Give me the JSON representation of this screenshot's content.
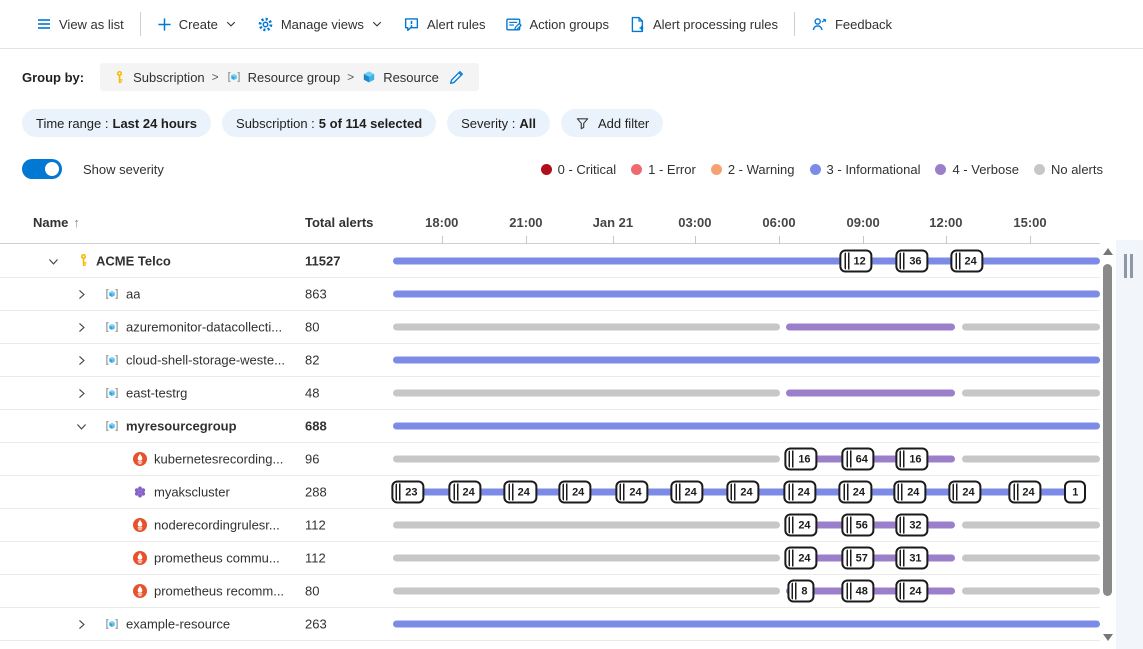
{
  "toolbar": {
    "items": [
      {
        "label": "View as list",
        "icon": "list",
        "chevron": false
      },
      {
        "label": "Create",
        "icon": "plus",
        "chevron": true
      },
      {
        "label": "Manage views",
        "icon": "gear",
        "chevron": true
      },
      {
        "label": "Alert rules",
        "icon": "alert-rules",
        "chevron": false
      },
      {
        "label": "Action groups",
        "icon": "action-groups",
        "chevron": false
      },
      {
        "label": "Alert processing rules",
        "icon": "processing-rules",
        "chevron": false
      },
      {
        "label": "Feedback",
        "icon": "feedback",
        "chevron": false
      }
    ]
  },
  "group_by": {
    "label": "Group by:",
    "path": [
      {
        "icon": "key",
        "label": "Subscription"
      },
      {
        "icon": "resource-group",
        "label": "Resource group"
      },
      {
        "icon": "resource",
        "label": "Resource"
      }
    ]
  },
  "filters": [
    {
      "name": "Time range",
      "value": "Last 24 hours"
    },
    {
      "name": "Subscription",
      "value": "5 of 114 selected"
    },
    {
      "name": "Severity",
      "value": "All"
    }
  ],
  "add_filter_label": "Add filter",
  "severity_toggle": {
    "label": "Show severity",
    "on": true
  },
  "legend": [
    {
      "label": "0 - Critical",
      "color": "#b10e1c"
    },
    {
      "label": "1 - Error",
      "color": "#ee6a6e"
    },
    {
      "label": "2 - Warning",
      "color": "#f7a173"
    },
    {
      "label": "3 - Informational",
      "color": "#7c8be6"
    },
    {
      "label": "4 - Verbose",
      "color": "#9c7fcb"
    },
    {
      "label": "No alerts",
      "color": "#c7c7c7"
    }
  ],
  "table": {
    "name_header": "Name",
    "sort_arrow": "↑",
    "total_header": "Total alerts",
    "ticks": [
      {
        "label": "18:00",
        "pos": 6.9
      },
      {
        "label": "21:00",
        "pos": 18.8
      },
      {
        "label": "Jan 21",
        "pos": 31.1
      },
      {
        "label": "03:00",
        "pos": 42.7
      },
      {
        "label": "06:00",
        "pos": 54.6
      },
      {
        "label": "09:00",
        "pos": 66.5
      },
      {
        "label": "12:00",
        "pos": 78.2
      },
      {
        "label": "15:00",
        "pos": 90.1
      }
    ]
  },
  "bar_colors": {
    "blue": "#7c8be6",
    "purple": "#9c7fcb",
    "gray": "#c7c7c7"
  },
  "rows": [
    {
      "name": "ACME Telco",
      "icon": "key",
      "total": "11527",
      "level": 0,
      "expander": "down",
      "bold": true,
      "segments": [
        {
          "c": "blue",
          "s": 0,
          "e": 100
        }
      ],
      "badges": [
        {
          "v": "12",
          "p": 65.5,
          "st": true
        },
        {
          "v": "36",
          "p": 73.4,
          "st": true
        },
        {
          "v": "24",
          "p": 81.2,
          "st": true
        }
      ]
    },
    {
      "name": "aa",
      "icon": "resource-group",
      "total": "863",
      "level": 1,
      "expander": "right",
      "bold": false,
      "segments": [
        {
          "c": "blue",
          "s": 0,
          "e": 100
        }
      ],
      "badges": []
    },
    {
      "name": "azuremonitor-datacollecti...",
      "icon": "resource-group",
      "total": "80",
      "level": 1,
      "expander": "right",
      "bold": false,
      "segments": [
        {
          "c": "gray",
          "s": 0,
          "e": 54.7
        },
        {
          "c": "purple",
          "s": 55.6,
          "e": 79.5
        },
        {
          "c": "gray",
          "s": 80.5,
          "e": 100
        }
      ],
      "badges": []
    },
    {
      "name": "cloud-shell-storage-weste...",
      "icon": "resource-group",
      "total": "82",
      "level": 1,
      "expander": "right",
      "bold": false,
      "segments": [
        {
          "c": "blue",
          "s": 0,
          "e": 100
        }
      ],
      "badges": []
    },
    {
      "name": "east-testrg",
      "icon": "resource-group",
      "total": "48",
      "level": 1,
      "expander": "right",
      "bold": false,
      "segments": [
        {
          "c": "gray",
          "s": 0,
          "e": 54.7
        },
        {
          "c": "purple",
          "s": 55.6,
          "e": 79.5
        },
        {
          "c": "gray",
          "s": 80.5,
          "e": 100
        }
      ],
      "badges": []
    },
    {
      "name": "myresourcegroup",
      "icon": "resource-group",
      "total": "688",
      "level": 1,
      "expander": "down",
      "bold": true,
      "segments": [
        {
          "c": "blue",
          "s": 0,
          "e": 100
        }
      ],
      "badges": []
    },
    {
      "name": "kubernetesrecording...",
      "icon": "prometheus",
      "total": "96",
      "level": 2,
      "expander": "none",
      "bold": false,
      "segments": [
        {
          "c": "gray",
          "s": 0,
          "e": 54.7
        },
        {
          "c": "purple",
          "s": 55.6,
          "e": 79.5
        },
        {
          "c": "gray",
          "s": 80.5,
          "e": 100
        }
      ],
      "badges": [
        {
          "v": "16",
          "p": 57.7,
          "st": true
        },
        {
          "v": "64",
          "p": 65.8,
          "st": true
        },
        {
          "v": "16",
          "p": 73.4,
          "st": true
        }
      ]
    },
    {
      "name": "myakscluster",
      "icon": "aks",
      "total": "288",
      "level": 2,
      "expander": "none",
      "bold": false,
      "segments": [
        {
          "c": "blue",
          "s": 0.3,
          "e": 97.8
        }
      ],
      "badges": [
        {
          "v": "23",
          "p": 2.1,
          "st": true
        },
        {
          "v": "24",
          "p": 10.2,
          "st": true
        },
        {
          "v": "24",
          "p": 18.0,
          "st": true
        },
        {
          "v": "24",
          "p": 25.7,
          "st": true
        },
        {
          "v": "24",
          "p": 33.8,
          "st": true
        },
        {
          "v": "24",
          "p": 41.6,
          "st": true
        },
        {
          "v": "24",
          "p": 49.5,
          "st": true
        },
        {
          "v": "24",
          "p": 57.6,
          "st": true
        },
        {
          "v": "24",
          "p": 65.4,
          "st": true
        },
        {
          "v": "24",
          "p": 73.1,
          "st": true
        },
        {
          "v": "24",
          "p": 80.9,
          "st": true
        },
        {
          "v": "24",
          "p": 89.4,
          "st": true
        },
        {
          "v": "1",
          "p": 96.5,
          "st": false
        }
      ]
    },
    {
      "name": "noderecordingrulesr...",
      "icon": "prometheus",
      "total": "112",
      "level": 2,
      "expander": "none",
      "bold": false,
      "segments": [
        {
          "c": "gray",
          "s": 0,
          "e": 54.7
        },
        {
          "c": "purple",
          "s": 55.6,
          "e": 79.5
        },
        {
          "c": "gray",
          "s": 80.5,
          "e": 100
        }
      ],
      "badges": [
        {
          "v": "24",
          "p": 57.7,
          "st": true
        },
        {
          "v": "56",
          "p": 65.8,
          "st": true
        },
        {
          "v": "32",
          "p": 73.4,
          "st": true
        }
      ]
    },
    {
      "name": "prometheus commu...",
      "icon": "prometheus",
      "total": "112",
      "level": 2,
      "expander": "none",
      "bold": false,
      "segments": [
        {
          "c": "gray",
          "s": 0,
          "e": 54.7
        },
        {
          "c": "purple",
          "s": 55.6,
          "e": 79.5
        },
        {
          "c": "gray",
          "s": 80.5,
          "e": 100
        }
      ],
      "badges": [
        {
          "v": "24",
          "p": 57.7,
          "st": true
        },
        {
          "v": "57",
          "p": 65.8,
          "st": true
        },
        {
          "v": "31",
          "p": 73.4,
          "st": true
        }
      ]
    },
    {
      "name": "prometheus recomm...",
      "icon": "prometheus",
      "total": "80",
      "level": 2,
      "expander": "none",
      "bold": false,
      "segments": [
        {
          "c": "gray",
          "s": 0,
          "e": 54.7
        },
        {
          "c": "purple",
          "s": 55.6,
          "e": 79.5
        },
        {
          "c": "gray",
          "s": 80.5,
          "e": 100
        }
      ],
      "badges": [
        {
          "v": "8",
          "p": 57.7,
          "st": true
        },
        {
          "v": "48",
          "p": 65.8,
          "st": true
        },
        {
          "v": "24",
          "p": 73.4,
          "st": true
        }
      ]
    },
    {
      "name": "example-resource",
      "icon": "resource-group",
      "total": "263",
      "level": 1,
      "expander": "right",
      "bold": false,
      "segments": [
        {
          "c": "blue",
          "s": 0,
          "e": 100
        }
      ],
      "badges": []
    }
  ]
}
